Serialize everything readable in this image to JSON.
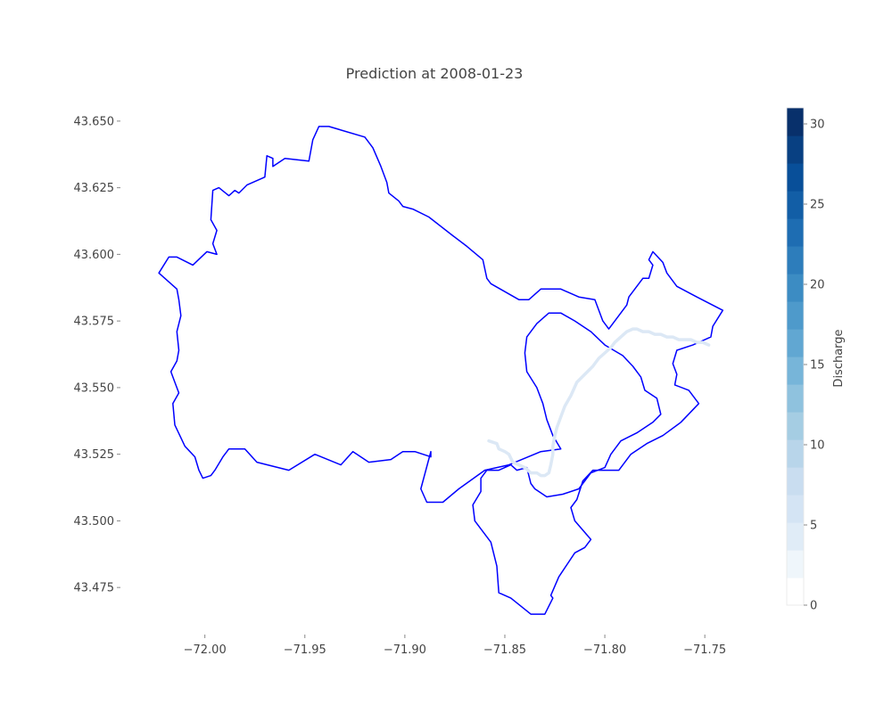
{
  "chart_data": {
    "type": "map",
    "title": "Prediction at 2008-01-23",
    "x_ticks": [
      "−72.00",
      "−71.95",
      "−71.90",
      "−71.85",
      "−71.80",
      "−71.75"
    ],
    "x_tick_values": [
      -72.0,
      -71.95,
      -71.9,
      -71.85,
      -71.8,
      -71.75
    ],
    "y_ticks": [
      "43.650",
      "43.625",
      "43.600",
      "43.575",
      "43.550",
      "43.525",
      "43.500",
      "43.475"
    ],
    "y_tick_values": [
      43.65,
      43.625,
      43.6,
      43.575,
      43.55,
      43.525,
      43.5,
      43.475
    ],
    "xlim": [
      -72.04,
      -71.73
    ],
    "ylim": [
      43.458,
      43.662
    ],
    "colorbar": {
      "label": "Discharge",
      "ticks": [
        "0",
        "5",
        "10",
        "15",
        "20",
        "25",
        "30"
      ],
      "tick_values": [
        0,
        5,
        10,
        15,
        20,
        25,
        30
      ],
      "range": [
        0,
        31
      ],
      "steps": 18,
      "colors": [
        "#ffffff",
        "#deebf7",
        "#c6dbef",
        "#9ecae1",
        "#6baed6",
        "#4292c6",
        "#2171b5",
        "#08519c",
        "#08306b"
      ]
    },
    "boundary_color": "#0000ff",
    "river_color": "#dce8f5",
    "basin_boundary": [
      [
        -72.023,
        43.593
      ],
      [
        -72.018,
        43.599
      ],
      [
        -72.014,
        43.599
      ],
      [
        -72.006,
        43.596
      ],
      [
        -71.999,
        43.601
      ],
      [
        -71.994,
        43.6
      ],
      [
        -71.996,
        43.604
      ],
      [
        -71.994,
        43.609
      ],
      [
        -71.997,
        43.613
      ],
      [
        -71.996,
        43.624
      ],
      [
        -71.993,
        43.625
      ],
      [
        -71.988,
        43.622
      ],
      [
        -71.985,
        43.624
      ],
      [
        -71.983,
        43.623
      ],
      [
        -71.979,
        43.626
      ],
      [
        -71.97,
        43.629
      ],
      [
        -71.969,
        43.637
      ],
      [
        -71.966,
        43.636
      ],
      [
        -71.966,
        43.633
      ],
      [
        -71.96,
        43.636
      ],
      [
        -71.948,
        43.635
      ],
      [
        -71.946,
        43.643
      ],
      [
        -71.943,
        43.648
      ],
      [
        -71.938,
        43.648
      ],
      [
        -71.92,
        43.644
      ],
      [
        -71.916,
        43.64
      ],
      [
        -71.912,
        43.633
      ],
      [
        -71.909,
        43.627
      ],
      [
        -71.908,
        43.623
      ],
      [
        -71.903,
        43.62
      ],
      [
        -71.901,
        43.618
      ],
      [
        -71.896,
        43.617
      ],
      [
        -71.888,
        43.614
      ],
      [
        -71.876,
        43.607
      ],
      [
        -71.869,
        43.603
      ],
      [
        -71.861,
        43.598
      ],
      [
        -71.859,
        43.591
      ],
      [
        -71.857,
        43.589
      ],
      [
        -71.843,
        43.583
      ],
      [
        -71.838,
        43.583
      ],
      [
        -71.832,
        43.587
      ],
      [
        -71.822,
        43.587
      ],
      [
        -71.813,
        43.584
      ],
      [
        -71.805,
        43.583
      ],
      [
        -71.801,
        43.575
      ],
      [
        -71.798,
        43.572
      ],
      [
        -71.797,
        43.573
      ],
      [
        -71.789,
        43.581
      ],
      [
        -71.788,
        43.584
      ],
      [
        -71.781,
        43.591
      ],
      [
        -71.778,
        43.591
      ],
      [
        -71.776,
        43.596
      ],
      [
        -71.778,
        43.598
      ],
      [
        -71.776,
        43.601
      ],
      [
        -71.771,
        43.597
      ],
      [
        -71.769,
        43.593
      ],
      [
        -71.764,
        43.588
      ],
      [
        -71.754,
        43.584
      ],
      [
        -71.741,
        43.579
      ],
      [
        -71.746,
        43.573
      ],
      [
        -71.747,
        43.569
      ],
      [
        -71.756,
        43.566
      ],
      [
        -71.764,
        43.564
      ],
      [
        -71.766,
        43.559
      ],
      [
        -71.764,
        43.555
      ],
      [
        -71.765,
        43.551
      ],
      [
        -71.758,
        43.549
      ],
      [
        -71.753,
        43.544
      ],
      [
        -71.762,
        43.537
      ],
      [
        -71.771,
        43.532
      ],
      [
        -71.779,
        43.529
      ],
      [
        -71.787,
        43.525
      ],
      [
        -71.793,
        43.519
      ],
      [
        -71.806,
        43.519
      ],
      [
        -71.811,
        43.515
      ],
      [
        -71.814,
        43.508
      ],
      [
        -71.817,
        43.505
      ],
      [
        -71.815,
        43.5
      ],
      [
        -71.807,
        43.493
      ],
      [
        -71.81,
        43.49
      ],
      [
        -71.815,
        43.488
      ],
      [
        -71.823,
        43.479
      ],
      [
        -71.827,
        43.472
      ],
      [
        -71.826,
        43.471
      ],
      [
        -71.83,
        43.465
      ],
      [
        -71.837,
        43.465
      ],
      [
        -71.847,
        43.471
      ],
      [
        -71.853,
        43.473
      ],
      [
        -71.854,
        43.483
      ],
      [
        -71.857,
        43.492
      ],
      [
        -71.865,
        43.5
      ],
      [
        -71.866,
        43.506
      ],
      [
        -71.862,
        43.511
      ],
      [
        -71.862,
        43.516
      ],
      [
        -71.859,
        43.519
      ],
      [
        -71.853,
        43.519
      ],
      [
        -71.847,
        43.521
      ],
      [
        -71.844,
        43.519
      ],
      [
        -71.839,
        43.52
      ],
      [
        -71.837,
        43.514
      ],
      [
        -71.835,
        43.512
      ],
      [
        -71.829,
        43.509
      ],
      [
        -71.821,
        43.51
      ],
      [
        -71.813,
        43.512
      ],
      [
        -71.807,
        43.518
      ],
      [
        -71.8,
        43.52
      ],
      [
        -71.797,
        43.525
      ],
      [
        -71.792,
        43.53
      ],
      [
        -71.784,
        43.533
      ],
      [
        -71.776,
        43.537
      ],
      [
        -71.772,
        43.54
      ],
      [
        -71.774,
        43.546
      ],
      [
        -71.78,
        43.549
      ],
      [
        -71.782,
        43.554
      ],
      [
        -71.786,
        43.558
      ],
      [
        -71.791,
        43.562
      ],
      [
        -71.8,
        43.566
      ],
      [
        -71.807,
        43.571
      ],
      [
        -71.815,
        43.575
      ],
      [
        -71.822,
        43.578
      ],
      [
        -71.828,
        43.578
      ],
      [
        -71.834,
        43.574
      ],
      [
        -71.839,
        43.569
      ],
      [
        -71.84,
        43.563
      ],
      [
        -71.839,
        43.556
      ],
      [
        -71.834,
        43.55
      ],
      [
        -71.831,
        43.544
      ],
      [
        -71.829,
        43.538
      ],
      [
        -71.826,
        43.532
      ],
      [
        -71.822,
        43.527
      ],
      [
        -71.832,
        43.526
      ],
      [
        -71.848,
        43.521
      ],
      [
        -71.86,
        43.519
      ],
      [
        -71.873,
        43.512
      ],
      [
        -71.881,
        43.507
      ],
      [
        -71.889,
        43.507
      ],
      [
        -71.892,
        43.512
      ],
      [
        -71.887,
        43.526
      ],
      [
        -71.887,
        43.524
      ],
      [
        -71.895,
        43.526
      ],
      [
        -71.901,
        43.526
      ],
      [
        -71.907,
        43.523
      ],
      [
        -71.918,
        43.522
      ],
      [
        -71.926,
        43.526
      ],
      [
        -71.932,
        43.521
      ],
      [
        -71.945,
        43.525
      ],
      [
        -71.958,
        43.519
      ],
      [
        -71.974,
        43.522
      ],
      [
        -71.98,
        43.527
      ],
      [
        -71.988,
        43.527
      ],
      [
        -71.991,
        43.524
      ],
      [
        -71.995,
        43.519
      ],
      [
        -71.997,
        43.517
      ],
      [
        -72.001,
        43.516
      ],
      [
        -72.003,
        43.519
      ],
      [
        -72.005,
        43.524
      ],
      [
        -72.01,
        43.528
      ],
      [
        -72.015,
        43.536
      ],
      [
        -72.016,
        43.544
      ],
      [
        -72.013,
        43.548
      ],
      [
        -72.015,
        43.552
      ],
      [
        -72.017,
        43.556
      ],
      [
        -72.014,
        43.56
      ],
      [
        -72.013,
        43.564
      ],
      [
        -72.014,
        43.571
      ],
      [
        -72.012,
        43.577
      ],
      [
        -72.013,
        43.583
      ],
      [
        -72.014,
        43.587
      ],
      [
        -72.023,
        43.593
      ]
    ],
    "river": [
      [
        -71.858,
        43.53
      ],
      [
        -71.854,
        43.529
      ],
      [
        -71.853,
        43.527
      ],
      [
        -71.85,
        43.526
      ],
      [
        -71.848,
        43.525
      ],
      [
        -71.846,
        43.522
      ],
      [
        -71.843,
        43.521
      ],
      [
        -71.84,
        43.52
      ],
      [
        -71.837,
        43.518
      ],
      [
        -71.834,
        43.518
      ],
      [
        -71.832,
        43.517
      ],
      [
        -71.83,
        43.517
      ],
      [
        -71.828,
        43.518
      ],
      [
        -71.827,
        43.521
      ],
      [
        -71.826,
        43.525
      ],
      [
        -71.826,
        43.528
      ],
      [
        -71.825,
        43.532
      ],
      [
        -71.824,
        43.535
      ],
      [
        -71.822,
        43.539
      ],
      [
        -71.82,
        43.543
      ],
      [
        -71.817,
        43.547
      ],
      [
        -71.814,
        43.552
      ],
      [
        -71.81,
        43.555
      ],
      [
        -71.806,
        43.558
      ],
      [
        -71.803,
        43.561
      ],
      [
        -71.8,
        43.563
      ],
      [
        -71.797,
        43.565
      ],
      [
        -71.795,
        43.567
      ],
      [
        -71.792,
        43.569
      ],
      [
        -71.789,
        43.571
      ],
      [
        -71.786,
        43.572
      ],
      [
        -71.784,
        43.572
      ],
      [
        -71.781,
        43.571
      ],
      [
        -71.778,
        43.571
      ],
      [
        -71.775,
        43.57
      ],
      [
        -71.772,
        43.57
      ],
      [
        -71.769,
        43.569
      ],
      [
        -71.766,
        43.569
      ],
      [
        -71.763,
        43.568
      ],
      [
        -71.76,
        43.568
      ],
      [
        -71.757,
        43.568
      ],
      [
        -71.754,
        43.567
      ],
      [
        -71.751,
        43.567
      ],
      [
        -71.748,
        43.566
      ]
    ]
  }
}
